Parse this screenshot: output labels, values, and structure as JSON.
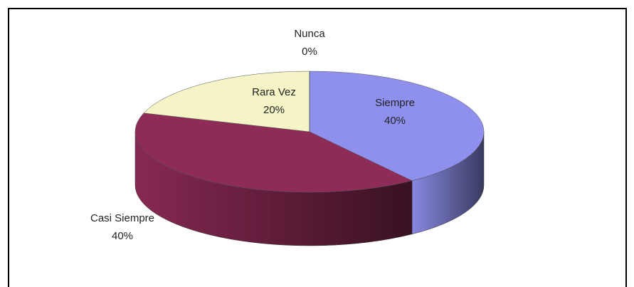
{
  "chart_data": {
    "type": "pie",
    "categories": [
      "Siempre",
      "Casi Siempre",
      "Rara Vez",
      "Nunca"
    ],
    "values": [
      40,
      40,
      20,
      0
    ],
    "value_labels": [
      "40%",
      "40%",
      "20%",
      "0%"
    ],
    "colors": [
      "#8f90ee",
      "#8e2b56",
      "#f4f4c6",
      "#5a5ab0"
    ]
  }
}
